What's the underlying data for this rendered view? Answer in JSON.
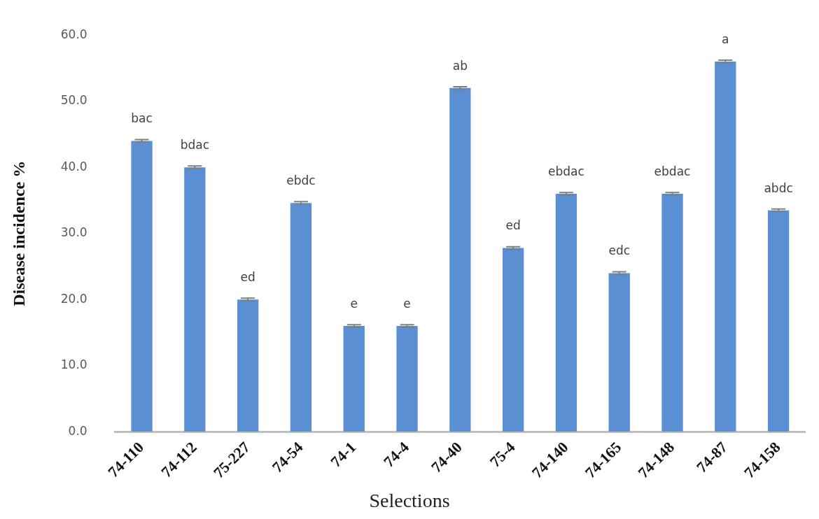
{
  "chart_data": {
    "type": "bar",
    "xlabel": "Selections",
    "ylabel": "Disease incidence %",
    "categories": [
      "74-110",
      "74-112",
      "75-227",
      "74-54",
      "74-1",
      "74-4",
      "74-40",
      "75-4",
      "74-140",
      "74-165",
      "74-148",
      "74-87",
      "74-158"
    ],
    "values": [
      44.0,
      40.0,
      20.0,
      34.6,
      16.0,
      16.0,
      52.0,
      27.8,
      36.0,
      24.0,
      36.0,
      56.0,
      33.5
    ],
    "errors": [
      0.2,
      0.2,
      0.2,
      0.2,
      0.2,
      0.2,
      0.2,
      0.2,
      0.2,
      0.2,
      0.2,
      0.2,
      0.2
    ],
    "color": "#5b8fd4",
    "ylim": [
      0,
      60
    ],
    "yticks": [
      {
        "value": 0,
        "label": "0.0"
      },
      {
        "value": 10,
        "label": "10.0"
      },
      {
        "value": 20,
        "label": "20.0"
      },
      {
        "value": 30,
        "label": "30.0"
      },
      {
        "value": 40,
        "label": "40.0"
      },
      {
        "value": 50,
        "label": "50.0"
      },
      {
        "value": 60,
        "label": "60.0"
      }
    ],
    "grid": false,
    "legend": false,
    "annotations": [
      {
        "text": "bac",
        "x": "74-110",
        "y": 44.0
      },
      {
        "text": "bdac",
        "x": "74-112",
        "y": 40.0
      },
      {
        "text": "ed",
        "x": "75-227",
        "y": 20.0
      },
      {
        "text": "ebdc",
        "x": "74-54",
        "y": 34.6
      },
      {
        "text": "e",
        "x": "74-1",
        "y": 16.0
      },
      {
        "text": "e",
        "x": "74-4",
        "y": 16.0
      },
      {
        "text": "ab",
        "x": "74-40",
        "y": 52.0
      },
      {
        "text": "ed",
        "x": "75-4",
        "y": 27.8
      },
      {
        "text": "ebdac",
        "x": "74-140",
        "y": 36.0
      },
      {
        "text": "edc",
        "x": "74-165",
        "y": 24.0
      },
      {
        "text": "ebdac",
        "x": "74-148",
        "y": 36.0
      },
      {
        "text": "a",
        "x": "74-87",
        "y": 56.0
      },
      {
        "text": "abdc",
        "x": "74-158",
        "y": 33.5
      }
    ]
  }
}
